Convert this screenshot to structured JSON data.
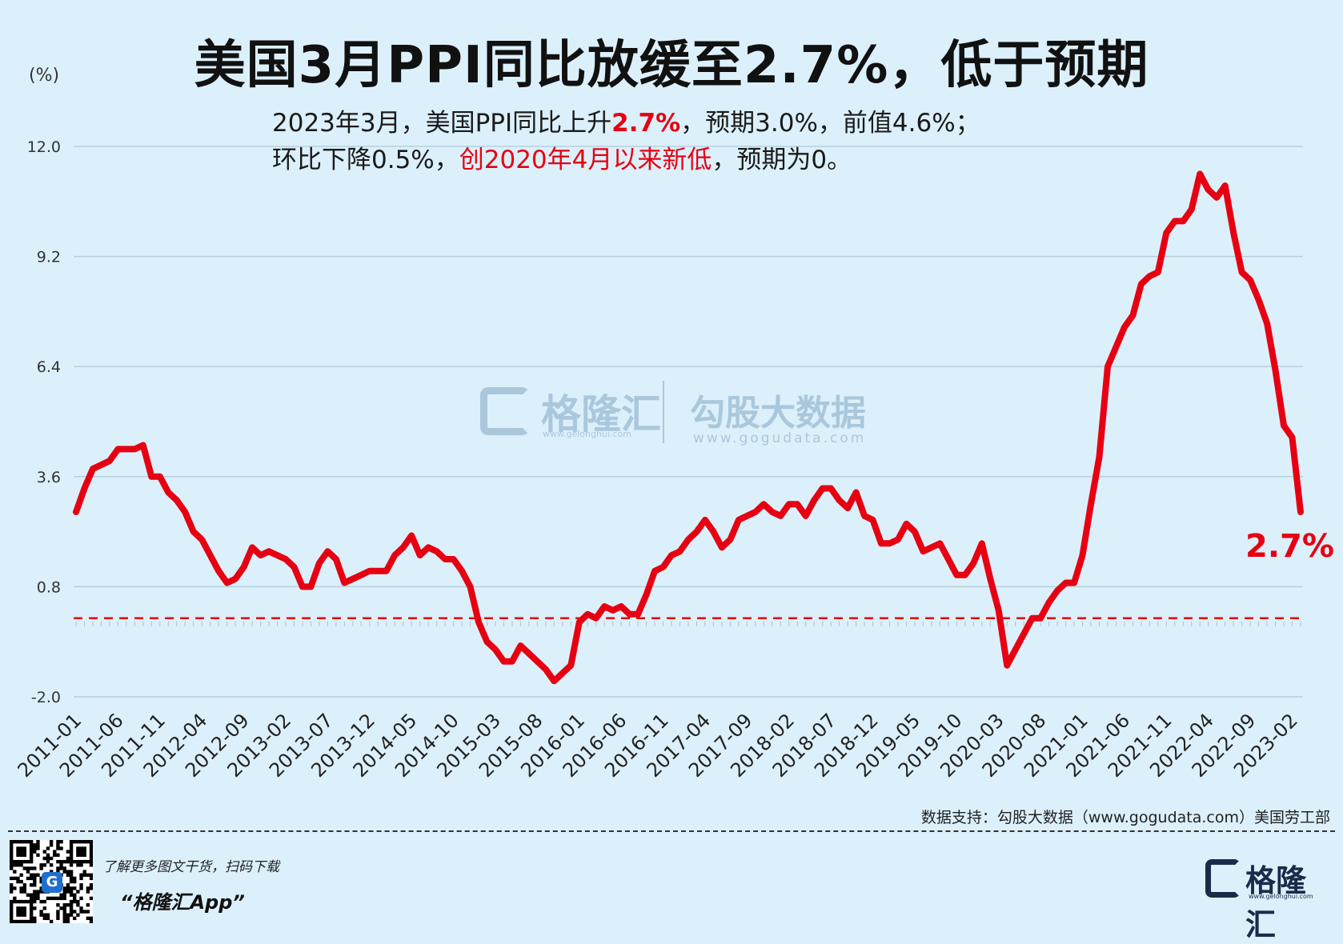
{
  "title": "美国3月PPI同比放缓至2.7%，低于预期",
  "unit": "(%)",
  "subtitle": {
    "line1_a": "2023年3月，美国PPI同比上升",
    "line1_highlight": "2.7%",
    "line1_b": "，预期3.0%，前值4.6%；",
    "line2_a": "环比下降0.5%，",
    "line2_highlight": "创2020年4月以来新低",
    "line2_b": "，预期为0。"
  },
  "watermark": {
    "name": "格隆汇",
    "url": "www.gelonghui.com",
    "name2": "勾股大数据",
    "url2": "www.gogudata.com"
  },
  "source": "数据支持：勾股大数据（www.gogudata.com）美国劳工部",
  "footer": {
    "promo_line1": "了解更多图文干货，扫码下载",
    "promo_line2": "“格隆汇App”",
    "qr_center": "G",
    "brand_name": "格隆汇",
    "brand_url": "www.gelonghui.com"
  },
  "colors": {
    "background": "#dcf0fb",
    "line": "#e60012",
    "grid": "#b5cfdf",
    "reference_line": "#e60012"
  },
  "chart_data": {
    "type": "line",
    "title": "美国3月PPI同比放缓至2.7%，低于预期",
    "ylabel": "(%)",
    "ylim": [
      -2.0,
      12.0
    ],
    "yticks": [
      12.0,
      9.2,
      6.4,
      3.6,
      0.8,
      -2.0
    ],
    "ytick_labels": [
      "12.0",
      "9.2",
      "6.4",
      "3.6",
      "0.8",
      "-2.0"
    ],
    "grid": true,
    "reference_line": {
      "y": 0,
      "style": "dashed"
    },
    "xtick_labels": [
      "2011-01",
      "2011-06",
      "2011-11",
      "2012-04",
      "2012-09",
      "2013-02",
      "2013-07",
      "2013-12",
      "2014-05",
      "2014-10",
      "2015-03",
      "2015-08",
      "2016-01",
      "2016-06",
      "2016-11",
      "2017-04",
      "2017-09",
      "2018-02",
      "2018-07",
      "2018-12",
      "2019-05",
      "2019-10",
      "2020-03",
      "2020-08",
      "2021-01",
      "2021-06",
      "2021-11",
      "2022-04",
      "2022-09",
      "2023-02"
    ],
    "last_value_label": "2.7%",
    "series": [
      {
        "start": "2011-01",
        "frequency": "monthly",
        "values": [
          2.7,
          3.3,
          3.8,
          3.9,
          4.0,
          4.3,
          4.3,
          4.3,
          4.4,
          3.6,
          3.6,
          3.2,
          3.0,
          2.7,
          2.2,
          2.0,
          1.6,
          1.2,
          0.9,
          1.0,
          1.3,
          1.8,
          1.6,
          1.7,
          1.6,
          1.5,
          1.3,
          0.8,
          0.8,
          1.4,
          1.7,
          1.5,
          0.9,
          1.0,
          1.1,
          1.2,
          1.2,
          1.2,
          1.6,
          1.8,
          2.1,
          1.6,
          1.8,
          1.7,
          1.5,
          1.5,
          1.2,
          0.8,
          -0.1,
          -0.6,
          -0.8,
          -1.1,
          -1.1,
          -0.7,
          -0.9,
          -1.1,
          -1.3,
          -1.6,
          -1.4,
          -1.2,
          -0.1,
          0.1,
          0.0,
          0.3,
          0.2,
          0.3,
          0.1,
          0.1,
          0.6,
          1.2,
          1.3,
          1.6,
          1.7,
          2.0,
          2.2,
          2.5,
          2.2,
          1.8,
          2.0,
          2.5,
          2.6,
          2.7,
          2.9,
          2.7,
          2.6,
          2.9,
          2.9,
          2.6,
          3.0,
          3.3,
          3.3,
          3.0,
          2.8,
          3.2,
          2.6,
          2.5,
          1.9,
          1.9,
          2.0,
          2.4,
          2.2,
          1.7,
          1.8,
          1.9,
          1.5,
          1.1,
          1.1,
          1.4,
          1.9,
          1.0,
          0.2,
          -1.2,
          -0.8,
          -0.4,
          0.0,
          0.0,
          0.4,
          0.7,
          0.9,
          0.9,
          1.6,
          2.9,
          4.1,
          6.4,
          6.9,
          7.4,
          7.7,
          8.5,
          8.7,
          8.8,
          9.8,
          10.1,
          10.1,
          10.4,
          11.3,
          10.9,
          10.7,
          11.0,
          9.8,
          8.8,
          8.6,
          8.1,
          7.5,
          6.3,
          4.9,
          4.6,
          2.7
        ]
      }
    ]
  }
}
